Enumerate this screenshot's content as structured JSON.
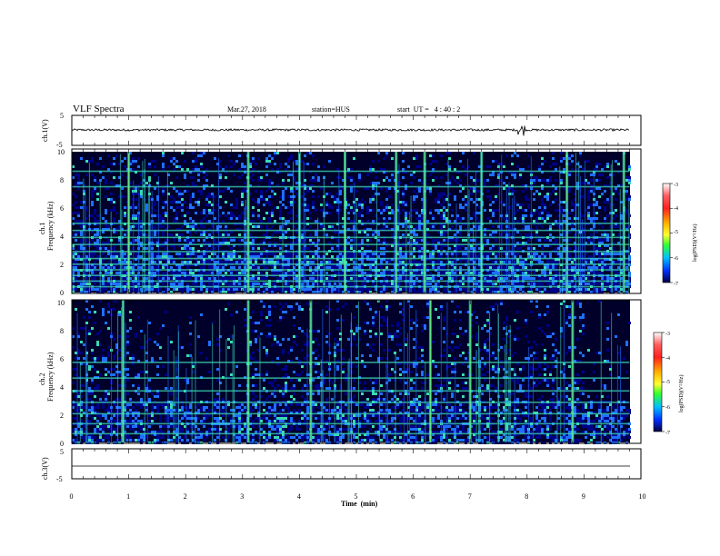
{
  "header": {
    "title": "VLF Spectra",
    "date": "Mar.27, 2018",
    "station": "station=HUS",
    "start_time": "start  UT =   4 : 40 : 2"
  },
  "chart_data": [
    {
      "type": "line",
      "name_label": "ch.1(V)",
      "ylim": [
        -5,
        5
      ],
      "y_ticks": [
        "5",
        "-5"
      ],
      "description_values": {
        "baseline": 0,
        "noise_amplitude_approx": 0.4,
        "spike_time_min": 7.9
      }
    },
    {
      "type": "heatmap",
      "ylabel_lines": [
        "ch.1",
        "Frequency  (kHz)"
      ],
      "y_ticks": [
        "0",
        "2",
        "4",
        "6",
        "8",
        "10"
      ],
      "ylim": [
        0,
        10
      ],
      "colorbar": {
        "label": "log(PSD)(V²/Hz)",
        "ticks": [
          "-3",
          "-4",
          "-5",
          "-6",
          "-7"
        ],
        "range": [
          -7,
          -3
        ]
      },
      "horizontal_bands_khz": [
        0.4,
        0.8,
        1.2,
        1.6,
        2.0,
        2.4,
        2.9,
        3.4,
        3.9,
        4.4,
        4.9,
        7.5,
        8.6
      ],
      "strong_columns_min": [
        1.0,
        3.1,
        4.0,
        4.8,
        5.7,
        6.2,
        7.2,
        8.7,
        9.7
      ]
    },
    {
      "type": "heatmap",
      "ylabel_lines": [
        "ch.2",
        "Frequency  (kHz)"
      ],
      "y_ticks": [
        "0",
        "2",
        "4",
        "6",
        "8",
        "10"
      ],
      "ylim": [
        0,
        10
      ],
      "colorbar": {
        "label": "log(PSD)(V²/Hz)",
        "ticks": [
          "-3",
          "-4",
          "-5",
          "-6",
          "-7"
        ],
        "range": [
          -7,
          -3
        ]
      },
      "horizontal_bands_khz": [
        0.6,
        1.3,
        2.0,
        2.8,
        3.6,
        4.5,
        5.6
      ],
      "strong_columns_min": [
        0.9,
        3.1,
        4.2,
        6.3,
        7.0,
        8.8
      ],
      "quiet_regions_min": [
        [
          1.5,
          3.0
        ],
        [
          9.0,
          9.8
        ]
      ]
    },
    {
      "type": "line",
      "name_label": "ch.3(V)",
      "ylim": [
        -5,
        5
      ],
      "y_ticks": [
        "5",
        "0",
        "-5"
      ],
      "description_values": {
        "baseline": -2
      }
    }
  ],
  "x_axis": {
    "label": "Time  (min)",
    "ticks": [
      "0",
      "1",
      "2",
      "3",
      "4",
      "5",
      "6",
      "7",
      "8",
      "9",
      "10"
    ],
    "range": [
      0,
      10
    ],
    "data_end_min": 9.8
  },
  "colors": {
    "background": "#00002a",
    "low": "#000088",
    "mid": "#1f6fff",
    "high": "#3bd9b4",
    "peak": "#7cff7c"
  }
}
